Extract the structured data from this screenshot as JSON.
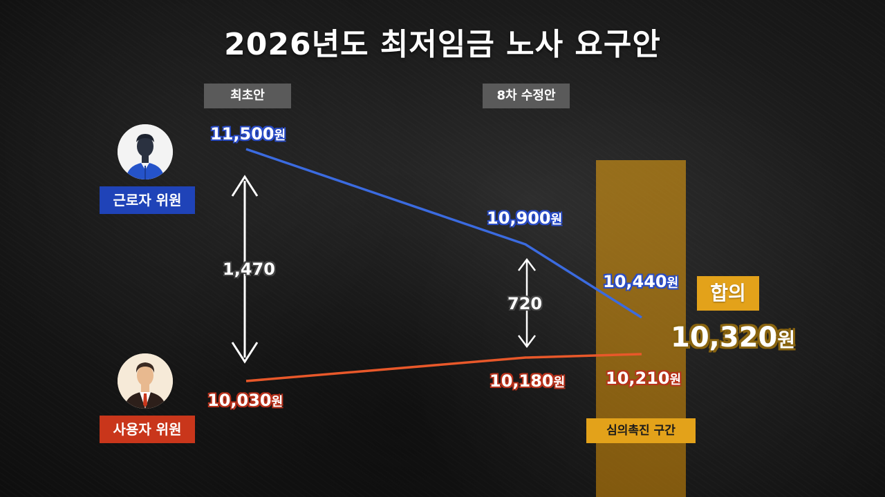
{
  "title": "2026년도 최저임금 노사 요구안",
  "phases": {
    "initial": "최초안",
    "eighth": "8차 수정안"
  },
  "roles": {
    "worker": "근로자 위원",
    "employer": "사용자 위원"
  },
  "colors": {
    "worker": "#3b6be0",
    "employer": "#e8582a",
    "agree": "#e3a21a",
    "role_worker_bg": "#1f43b8",
    "role_employer_bg": "#c9361b"
  },
  "icons": {
    "worker_avatar": "worker-avatar-icon",
    "employer_avatar": "employer-avatar-icon",
    "arrow": "double-arrow-icon"
  },
  "unit": "원",
  "labels": {
    "w1": "11,500",
    "w2": "10,900",
    "w3": "10,440",
    "e1": "10,030",
    "e2": "10,180",
    "e3": "10,210",
    "gap1": "1,470",
    "gap2": "720"
  },
  "agreement": {
    "label": "합의",
    "value": "10,320",
    "unit": "원"
  },
  "band_label": "심의촉진 구간",
  "chart_data": {
    "type": "line",
    "categories": [
      "최초안",
      "8차 수정안",
      "심의촉진 구간"
    ],
    "series": [
      {
        "name": "근로자 위원",
        "values": [
          11500,
          10900,
          10440
        ]
      },
      {
        "name": "사용자 위원",
        "values": [
          10030,
          10180,
          10210
        ]
      }
    ],
    "differences": [
      1470,
      720
    ],
    "agreement": 10320,
    "title": "2026년도 최저임금 노사 요구안",
    "xlabel": "",
    "ylabel": "",
    "grid": false
  }
}
